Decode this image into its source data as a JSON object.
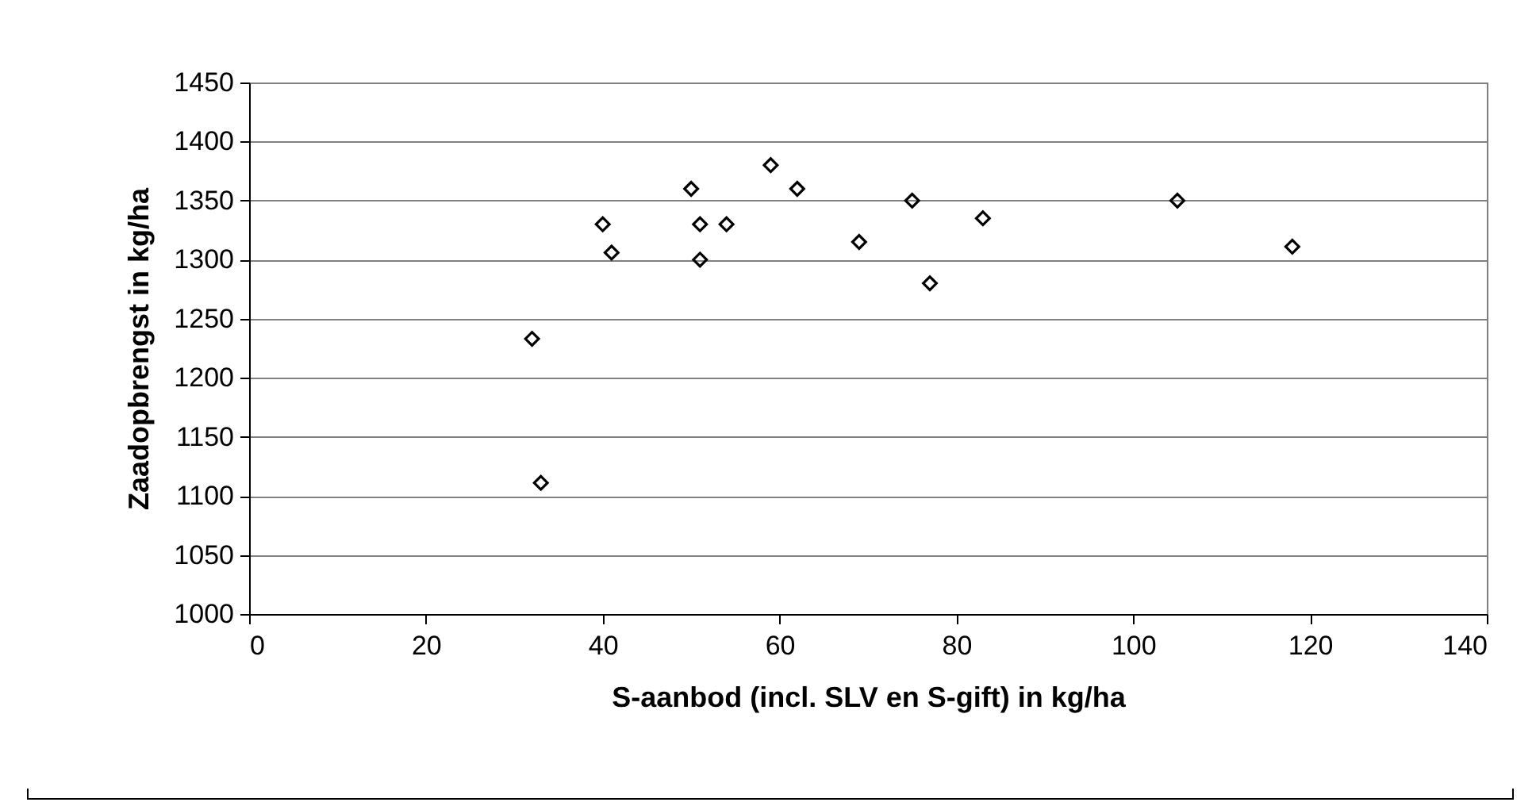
{
  "chart_data": {
    "type": "scatter",
    "xlabel": "S-aanbod (incl. SLV en S-gift) in kg/ha",
    "ylabel": "Zaadopbrengst in kg/ha",
    "x": [
      32,
      33,
      40,
      41,
      50,
      51,
      51,
      54,
      59,
      62,
      69,
      75,
      77,
      83,
      105,
      118
    ],
    "series": [
      {
        "color": "#000000",
        "values": [
          1233,
          1111,
          1330,
          1306,
          1360,
          1330,
          1300,
          1330,
          1380,
          1360,
          1315,
          1350,
          1280,
          1335,
          1350,
          1311
        ]
      }
    ],
    "xlim": [
      0,
      140
    ],
    "xticks": [
      0,
      20,
      40,
      60,
      80,
      100,
      120,
      140
    ],
    "ylim": [
      1000,
      1450
    ],
    "yticks": [
      1000,
      1050,
      1100,
      1150,
      1200,
      1250,
      1300,
      1350,
      1400,
      1450
    ],
    "grid": "y",
    "marker": "diamond"
  }
}
